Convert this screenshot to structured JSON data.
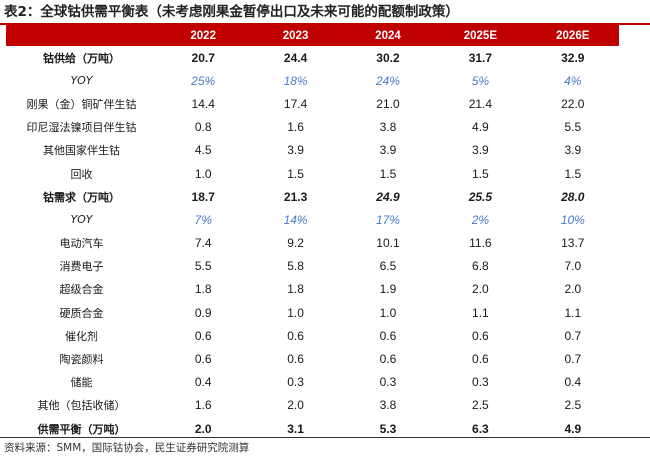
{
  "title": "表2：全球钴供需平衡表（未考虑刚果金暂停出口及未来可能的配额制政策）",
  "columns": [
    "",
    "2022",
    "2023",
    "2024",
    "2025E",
    "2026E"
  ],
  "rows": [
    {
      "label": "钴供给（万吨）",
      "values": [
        "20.7",
        "24.4",
        "30.2",
        "31.7",
        "32.9"
      ],
      "style": "bold"
    },
    {
      "label": "YOY",
      "values": [
        "25%",
        "18%",
        "24%",
        "5%",
        "4%"
      ],
      "style": "yoy"
    },
    {
      "label": "刚果（金）铜矿伴生钴",
      "values": [
        "14.4",
        "17.4",
        "21.0",
        "21.4",
        "22.0"
      ],
      "style": "normal"
    },
    {
      "label": "印尼湿法镍项目伴生钴",
      "values": [
        "0.8",
        "1.6",
        "3.8",
        "4.9",
        "5.5"
      ],
      "style": "normal"
    },
    {
      "label": "其他国家伴生钴",
      "values": [
        "4.5",
        "3.9",
        "3.9",
        "3.9",
        "3.9"
      ],
      "style": "normal"
    },
    {
      "label": "回收",
      "values": [
        "1.0",
        "1.5",
        "1.5",
        "1.5",
        "1.5"
      ],
      "style": "normal"
    },
    {
      "label": "钴需求（万吨）",
      "values": [
        "18.7",
        "21.3",
        "24.9",
        "25.5",
        "28.0"
      ],
      "style": "bold"
    },
    {
      "label": "YOY",
      "values": [
        "7%",
        "14%",
        "17%",
        "2%",
        "10%"
      ],
      "style": "yoy"
    },
    {
      "label": "电动汽车",
      "values": [
        "7.4",
        "9.2",
        "10.1",
        "11.6",
        "13.7"
      ],
      "style": "normal"
    },
    {
      "label": "消费电子",
      "values": [
        "5.5",
        "5.8",
        "6.5",
        "6.8",
        "7.0"
      ],
      "style": "normal"
    },
    {
      "label": "超级合金",
      "values": [
        "1.8",
        "1.8",
        "1.9",
        "2.0",
        "2.0"
      ],
      "style": "normal"
    },
    {
      "label": "硬质合金",
      "values": [
        "0.9",
        "1.0",
        "1.0",
        "1.1",
        "1.1"
      ],
      "style": "normal"
    },
    {
      "label": "催化剂",
      "values": [
        "0.6",
        "0.6",
        "0.6",
        "0.6",
        "0.7"
      ],
      "style": "normal"
    },
    {
      "label": "陶瓷颜料",
      "values": [
        "0.6",
        "0.6",
        "0.6",
        "0.6",
        "0.7"
      ],
      "style": "normal"
    },
    {
      "label": "储能",
      "values": [
        "0.4",
        "0.3",
        "0.3",
        "0.3",
        "0.4"
      ],
      "style": "normal"
    },
    {
      "label": "其他（包括收储）",
      "values": [
        "1.6",
        "2.0",
        "3.8",
        "2.5",
        "2.5"
      ],
      "style": "normal"
    },
    {
      "label": "供需平衡（万吨）",
      "values": [
        "2.0",
        "3.1",
        "5.3",
        "6.3",
        "4.9"
      ],
      "style": "bold"
    }
  ],
  "source": "资料来源：SMM，国际钴协会，民生证券研究院测算",
  "colors": {
    "header_bg": "#c00000",
    "header_text": "#ffffff",
    "yoy_text": "#4a7bc8",
    "rule": "#c00000"
  }
}
